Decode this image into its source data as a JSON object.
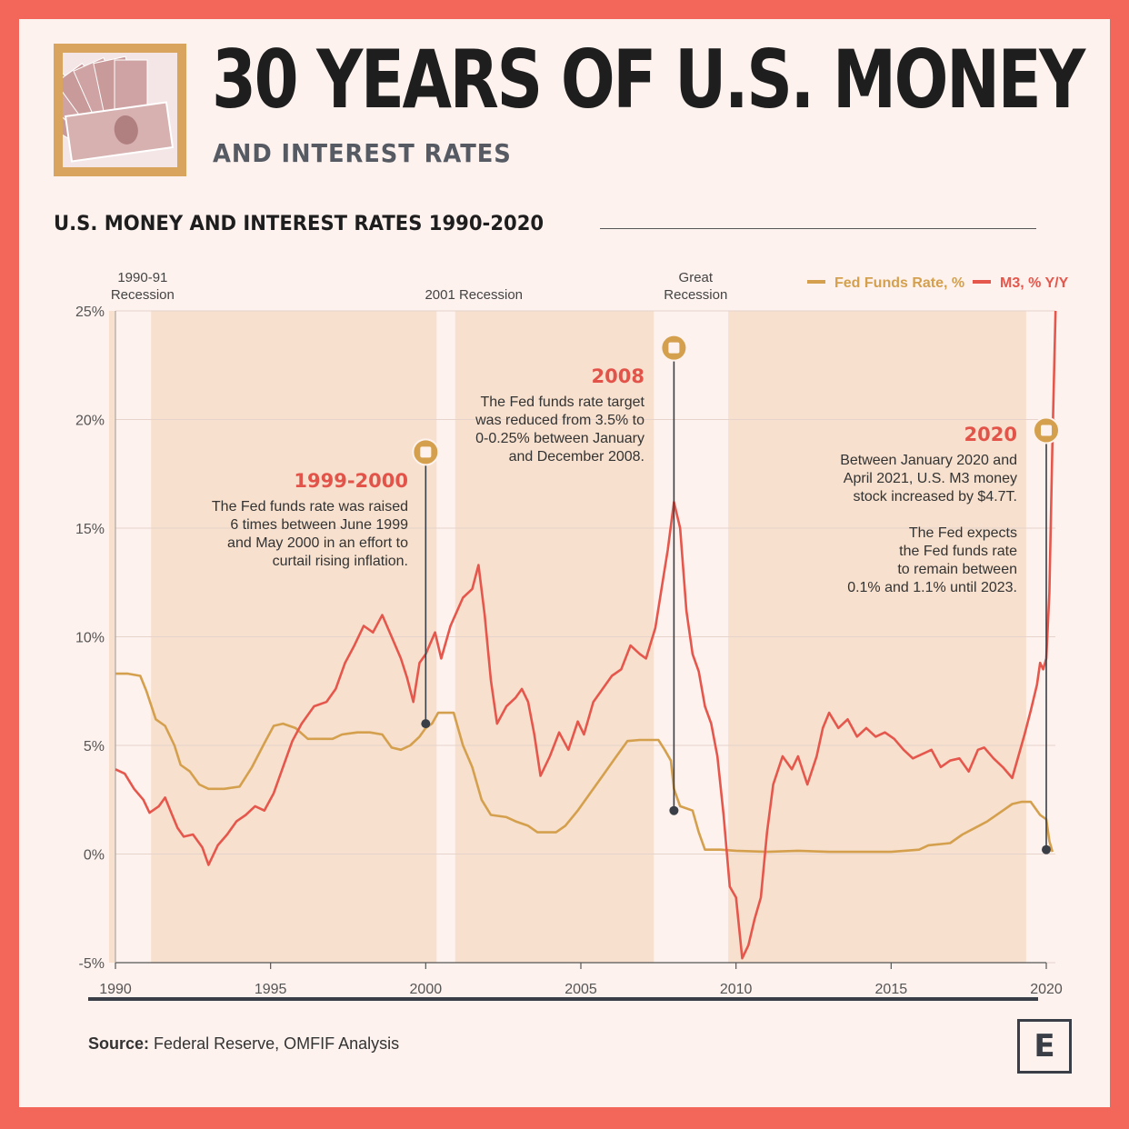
{
  "header": {
    "title": "30 YEARS OF U.S. MONEY",
    "subtitle": "AND INTEREST RATES",
    "logo_icon": "money-bills-icon"
  },
  "chart_title": "U.S. MONEY AND INTEREST RATES 1990-2020",
  "source": {
    "label": "Source:",
    "text": "Federal Reserve, OMFIF Analysis"
  },
  "brand_letter": "E",
  "colors": {
    "fed": "#d4a04e",
    "m3": "#e5574c",
    "band": "#f7e0cd",
    "dot": "#3a3f47",
    "frame": "#f2675a"
  },
  "chart_data": {
    "type": "line",
    "title": "U.S. MONEY AND INTEREST RATES 1990-2020",
    "xlim": [
      1990,
      2020.4
    ],
    "ylim": [
      -5,
      25
    ],
    "x_ticks": [
      1990,
      1995,
      2000,
      2005,
      2010,
      2015,
      2020
    ],
    "y_ticks": [
      {
        "value": 25,
        "label": "25%"
      },
      {
        "value": 20,
        "label": "20%"
      },
      {
        "value": 15,
        "label": "15%"
      },
      {
        "value": 10,
        "label": "10%"
      },
      {
        "value": 5,
        "label": "5%"
      },
      {
        "value": 0,
        "label": "0%"
      },
      {
        "value": -5,
        "label": "-5%"
      }
    ],
    "grid": true,
    "legend_position": "top-right",
    "recessions": [
      {
        "label_lines": [
          "1990-91",
          "Recession"
        ],
        "start": 1990.55,
        "end": 1991.2
      },
      {
        "label_lines": [
          "2001 Recession"
        ],
        "start": 2001.2,
        "end": 2001.9
      },
      {
        "label_lines": [
          "Great",
          "Recession"
        ],
        "start": 2007.9,
        "end": 2009.5
      }
    ],
    "shaded_periods": [
      {
        "start": 1991.15,
        "end": 2000.35
      },
      {
        "start": 2000.95,
        "end": 2007.35
      },
      {
        "start": 2009.75,
        "end": 2019.35
      }
    ],
    "series": [
      {
        "name": "Fed Funds Rate, %",
        "color": "#d4a04e",
        "points": [
          [
            1990.0,
            8.3
          ],
          [
            1990.4,
            8.3
          ],
          [
            1990.8,
            8.2
          ],
          [
            1991.0,
            7.5
          ],
          [
            1991.3,
            6.2
          ],
          [
            1991.6,
            5.9
          ],
          [
            1991.9,
            5.0
          ],
          [
            1992.1,
            4.1
          ],
          [
            1992.4,
            3.8
          ],
          [
            1992.7,
            3.2
          ],
          [
            1993.0,
            3.0
          ],
          [
            1993.5,
            3.0
          ],
          [
            1994.0,
            3.1
          ],
          [
            1994.4,
            4.0
          ],
          [
            1994.8,
            5.1
          ],
          [
            1995.1,
            5.9
          ],
          [
            1995.4,
            6.0
          ],
          [
            1995.8,
            5.8
          ],
          [
            1996.2,
            5.3
          ],
          [
            1996.6,
            5.3
          ],
          [
            1997.0,
            5.3
          ],
          [
            1997.3,
            5.5
          ],
          [
            1997.8,
            5.6
          ],
          [
            1998.2,
            5.6
          ],
          [
            1998.6,
            5.5
          ],
          [
            1998.9,
            4.9
          ],
          [
            1999.2,
            4.8
          ],
          [
            1999.5,
            5.0
          ],
          [
            1999.8,
            5.4
          ],
          [
            2000.0,
            5.8
          ],
          [
            2000.2,
            6.0
          ],
          [
            2000.4,
            6.5
          ],
          [
            2000.6,
            6.5
          ],
          [
            2000.9,
            6.5
          ],
          [
            2001.2,
            5.0
          ],
          [
            2001.5,
            4.0
          ],
          [
            2001.8,
            2.5
          ],
          [
            2002.1,
            1.8
          ],
          [
            2002.6,
            1.7
          ],
          [
            2002.9,
            1.5
          ],
          [
            2003.3,
            1.3
          ],
          [
            2003.6,
            1.0
          ],
          [
            2004.2,
            1.0
          ],
          [
            2004.5,
            1.3
          ],
          [
            2004.9,
            2.0
          ],
          [
            2005.3,
            2.8
          ],
          [
            2005.7,
            3.6
          ],
          [
            2006.1,
            4.4
          ],
          [
            2006.5,
            5.2
          ],
          [
            2006.9,
            5.25
          ],
          [
            2007.2,
            5.25
          ],
          [
            2007.5,
            5.25
          ],
          [
            2007.7,
            4.8
          ],
          [
            2007.9,
            4.3
          ],
          [
            2008.0,
            3.0
          ],
          [
            2008.2,
            2.2
          ],
          [
            2008.6,
            2.0
          ],
          [
            2008.8,
            1.0
          ],
          [
            2009.0,
            0.2
          ],
          [
            2009.5,
            0.2
          ],
          [
            2010.0,
            0.15
          ],
          [
            2011.0,
            0.1
          ],
          [
            2012.0,
            0.15
          ],
          [
            2013.0,
            0.1
          ],
          [
            2014.0,
            0.1
          ],
          [
            2015.0,
            0.1
          ],
          [
            2015.9,
            0.2
          ],
          [
            2016.2,
            0.4
          ],
          [
            2016.9,
            0.5
          ],
          [
            2017.3,
            0.9
          ],
          [
            2017.7,
            1.2
          ],
          [
            2018.1,
            1.5
          ],
          [
            2018.5,
            1.9
          ],
          [
            2018.9,
            2.3
          ],
          [
            2019.2,
            2.4
          ],
          [
            2019.5,
            2.4
          ],
          [
            2019.8,
            1.8
          ],
          [
            2020.0,
            1.6
          ],
          [
            2020.1,
            0.6
          ],
          [
            2020.2,
            0.1
          ]
        ]
      },
      {
        "name": "M3, % Y/Y",
        "color": "#e5574c",
        "points": [
          [
            1990.0,
            3.9
          ],
          [
            1990.3,
            3.7
          ],
          [
            1990.6,
            3.0
          ],
          [
            1990.9,
            2.5
          ],
          [
            1991.1,
            1.9
          ],
          [
            1991.4,
            2.2
          ],
          [
            1991.6,
            2.6
          ],
          [
            1991.8,
            1.9
          ],
          [
            1992.0,
            1.2
          ],
          [
            1992.2,
            0.8
          ],
          [
            1992.5,
            0.9
          ],
          [
            1992.8,
            0.3
          ],
          [
            1993.0,
            -0.5
          ],
          [
            1993.3,
            0.4
          ],
          [
            1993.6,
            0.9
          ],
          [
            1993.9,
            1.5
          ],
          [
            1994.2,
            1.8
          ],
          [
            1994.5,
            2.2
          ],
          [
            1994.8,
            2.0
          ],
          [
            1995.1,
            2.8
          ],
          [
            1995.4,
            4.0
          ],
          [
            1995.7,
            5.2
          ],
          [
            1996.0,
            6.0
          ],
          [
            1996.4,
            6.8
          ],
          [
            1996.8,
            7.0
          ],
          [
            1997.1,
            7.6
          ],
          [
            1997.4,
            8.8
          ],
          [
            1997.7,
            9.6
          ],
          [
            1998.0,
            10.5
          ],
          [
            1998.3,
            10.2
          ],
          [
            1998.6,
            11.0
          ],
          [
            1998.9,
            10.0
          ],
          [
            1999.2,
            9.0
          ],
          [
            1999.4,
            8.1
          ],
          [
            1999.6,
            7.0
          ],
          [
            1999.8,
            8.8
          ],
          [
            2000.0,
            9.2
          ],
          [
            2000.3,
            10.2
          ],
          [
            2000.5,
            9.0
          ],
          [
            2000.8,
            10.5
          ],
          [
            2001.2,
            11.8
          ],
          [
            2001.5,
            12.2
          ],
          [
            2001.7,
            13.3
          ],
          [
            2001.9,
            11.0
          ],
          [
            2002.1,
            8.0
          ],
          [
            2002.3,
            6.0
          ],
          [
            2002.6,
            6.8
          ],
          [
            2002.9,
            7.2
          ],
          [
            2003.1,
            7.6
          ],
          [
            2003.3,
            7.0
          ],
          [
            2003.5,
            5.5
          ],
          [
            2003.7,
            3.6
          ],
          [
            2004.0,
            4.5
          ],
          [
            2004.3,
            5.6
          ],
          [
            2004.6,
            4.8
          ],
          [
            2004.9,
            6.1
          ],
          [
            2005.1,
            5.5
          ],
          [
            2005.4,
            7.0
          ],
          [
            2005.7,
            7.6
          ],
          [
            2006.0,
            8.2
          ],
          [
            2006.3,
            8.5
          ],
          [
            2006.6,
            9.6
          ],
          [
            2006.9,
            9.2
          ],
          [
            2007.1,
            9.0
          ],
          [
            2007.4,
            10.4
          ],
          [
            2007.6,
            12.2
          ],
          [
            2007.8,
            14.0
          ],
          [
            2008.0,
            16.2
          ],
          [
            2008.2,
            15.0
          ],
          [
            2008.4,
            11.2
          ],
          [
            2008.6,
            9.2
          ],
          [
            2008.8,
            8.4
          ],
          [
            2009.0,
            6.8
          ],
          [
            2009.2,
            6.0
          ],
          [
            2009.4,
            4.5
          ],
          [
            2009.6,
            1.8
          ],
          [
            2009.8,
            -1.5
          ],
          [
            2010.0,
            -2.0
          ],
          [
            2010.2,
            -4.8
          ],
          [
            2010.4,
            -4.2
          ],
          [
            2010.6,
            -3.0
          ],
          [
            2010.8,
            -2.0
          ],
          [
            2011.0,
            1.0
          ],
          [
            2011.2,
            3.2
          ],
          [
            2011.5,
            4.5
          ],
          [
            2011.8,
            3.9
          ],
          [
            2012.0,
            4.5
          ],
          [
            2012.3,
            3.2
          ],
          [
            2012.6,
            4.5
          ],
          [
            2012.8,
            5.8
          ],
          [
            2013.0,
            6.5
          ],
          [
            2013.3,
            5.8
          ],
          [
            2013.6,
            6.2
          ],
          [
            2013.9,
            5.4
          ],
          [
            2014.2,
            5.8
          ],
          [
            2014.5,
            5.4
          ],
          [
            2014.8,
            5.6
          ],
          [
            2015.1,
            5.3
          ],
          [
            2015.4,
            4.8
          ],
          [
            2015.7,
            4.4
          ],
          [
            2016.0,
            4.6
          ],
          [
            2016.3,
            4.8
          ],
          [
            2016.6,
            4.0
          ],
          [
            2016.9,
            4.3
          ],
          [
            2017.2,
            4.4
          ],
          [
            2017.5,
            3.8
          ],
          [
            2017.8,
            4.8
          ],
          [
            2018.0,
            4.9
          ],
          [
            2018.3,
            4.4
          ],
          [
            2018.6,
            4.0
          ],
          [
            2018.9,
            3.5
          ],
          [
            2019.1,
            4.5
          ],
          [
            2019.3,
            5.5
          ],
          [
            2019.5,
            6.6
          ],
          [
            2019.7,
            7.8
          ],
          [
            2019.8,
            8.8
          ],
          [
            2019.9,
            8.5
          ],
          [
            2020.0,
            9.0
          ],
          [
            2020.1,
            12.0
          ],
          [
            2020.2,
            19.0
          ],
          [
            2020.3,
            25.0
          ]
        ]
      }
    ],
    "markers": [
      {
        "x": 2000.0,
        "y": 6.0,
        "icon_y": 18.5
      },
      {
        "x": 2008.0,
        "y": 2.0,
        "icon_y": 23.3
      },
      {
        "x": 2020.0,
        "y": 0.2,
        "icon_y": 19.5
      }
    ],
    "annotations": [
      {
        "head": "1999-2000",
        "lines": [
          "The Fed funds rate was raised",
          "6 times between June 1999",
          "and May 2000 in an effort to",
          "curtail rising inflation."
        ]
      },
      {
        "head": "2008",
        "lines": [
          "The Fed funds rate target",
          "was reduced from 3.5% to",
          "0-0.25% between January",
          "and December 2008."
        ]
      },
      {
        "head": "2020",
        "lines": [
          "Between January 2020 and",
          "April 2021, U.S. M3 money",
          "stock increased by $4.7T.",
          "",
          "The Fed expects",
          "the Fed funds rate",
          "to remain between",
          "0.1% and 1.1% until 2023."
        ]
      }
    ]
  }
}
